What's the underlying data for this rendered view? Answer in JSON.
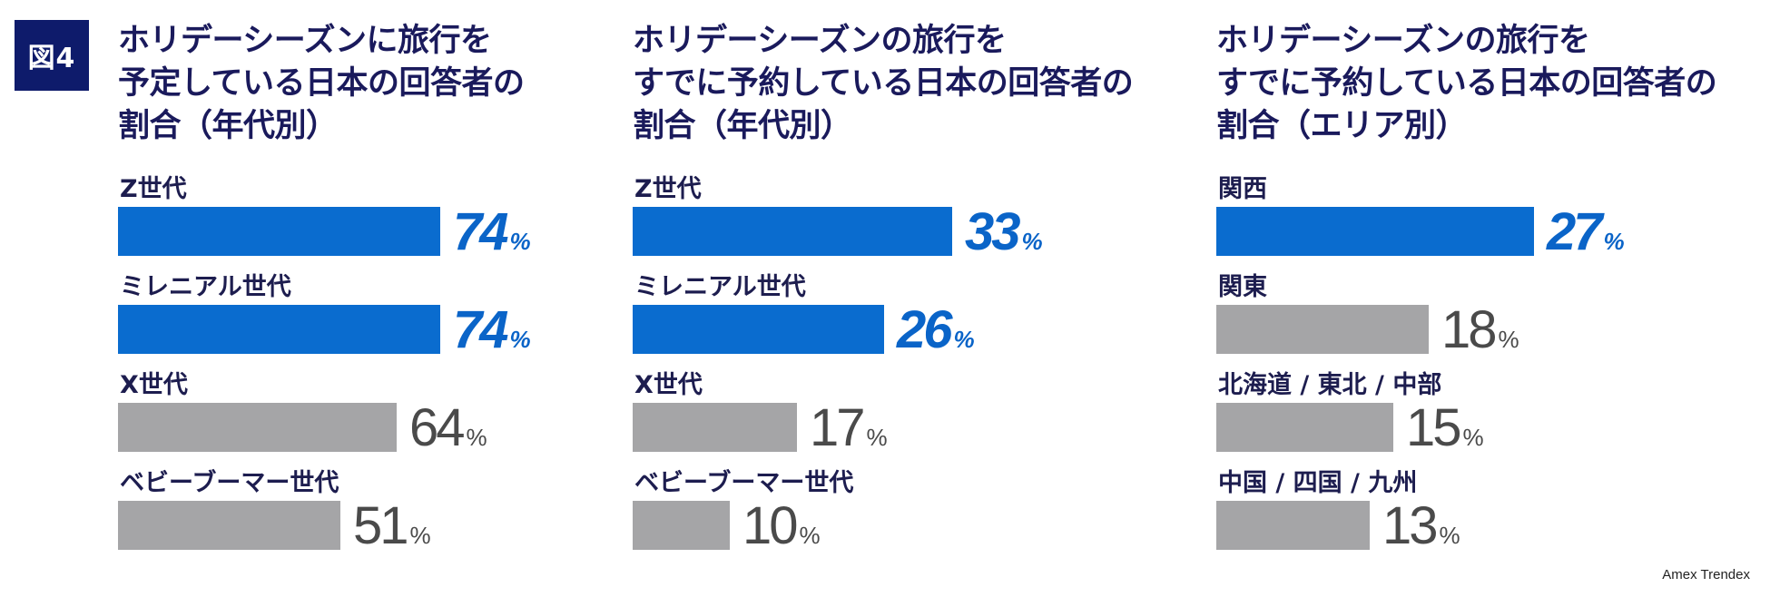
{
  "figure_label": "図4",
  "source": "Amex Trendex",
  "colors": {
    "highlight": "#0a6ccf",
    "other": "#a5a5a7",
    "title": "#1a1a5c",
    "badge": "#0e1b6b"
  },
  "chart_data": [
    {
      "type": "bar",
      "title": "ホリデーシーズンに旅行を\n予定している日本の回答者の\n割合（年代別）",
      "categories": [
        "Z世代",
        "ミレニアル世代",
        "X世代",
        "ベビーブーマー世代"
      ],
      "values": [
        74,
        74,
        64,
        51
      ],
      "highlight": [
        true,
        true,
        false,
        false
      ],
      "unit": "%",
      "xlim": [
        0,
        100
      ]
    },
    {
      "type": "bar",
      "title": "ホリデーシーズンの旅行を\nすでに予約している日本の回答者の\n割合（年代別）",
      "categories": [
        "Z世代",
        "ミレニアル世代",
        "X世代",
        "ベビーブーマー世代"
      ],
      "values": [
        33,
        26,
        17,
        10
      ],
      "highlight": [
        true,
        true,
        false,
        false
      ],
      "unit": "%",
      "xlim": [
        0,
        45
      ]
    },
    {
      "type": "bar",
      "title": "ホリデーシーズンの旅行を\nすでに予約している日本の回答者の\n割合（エリア別）",
      "categories": [
        "関西",
        "関東",
        "北海道 / 東北 / 中部",
        "中国 / 四国 / 九州"
      ],
      "values": [
        27,
        18,
        15,
        13
      ],
      "highlight": [
        true,
        false,
        false,
        false
      ],
      "unit": "%",
      "xlim": [
        0,
        37
      ]
    }
  ]
}
